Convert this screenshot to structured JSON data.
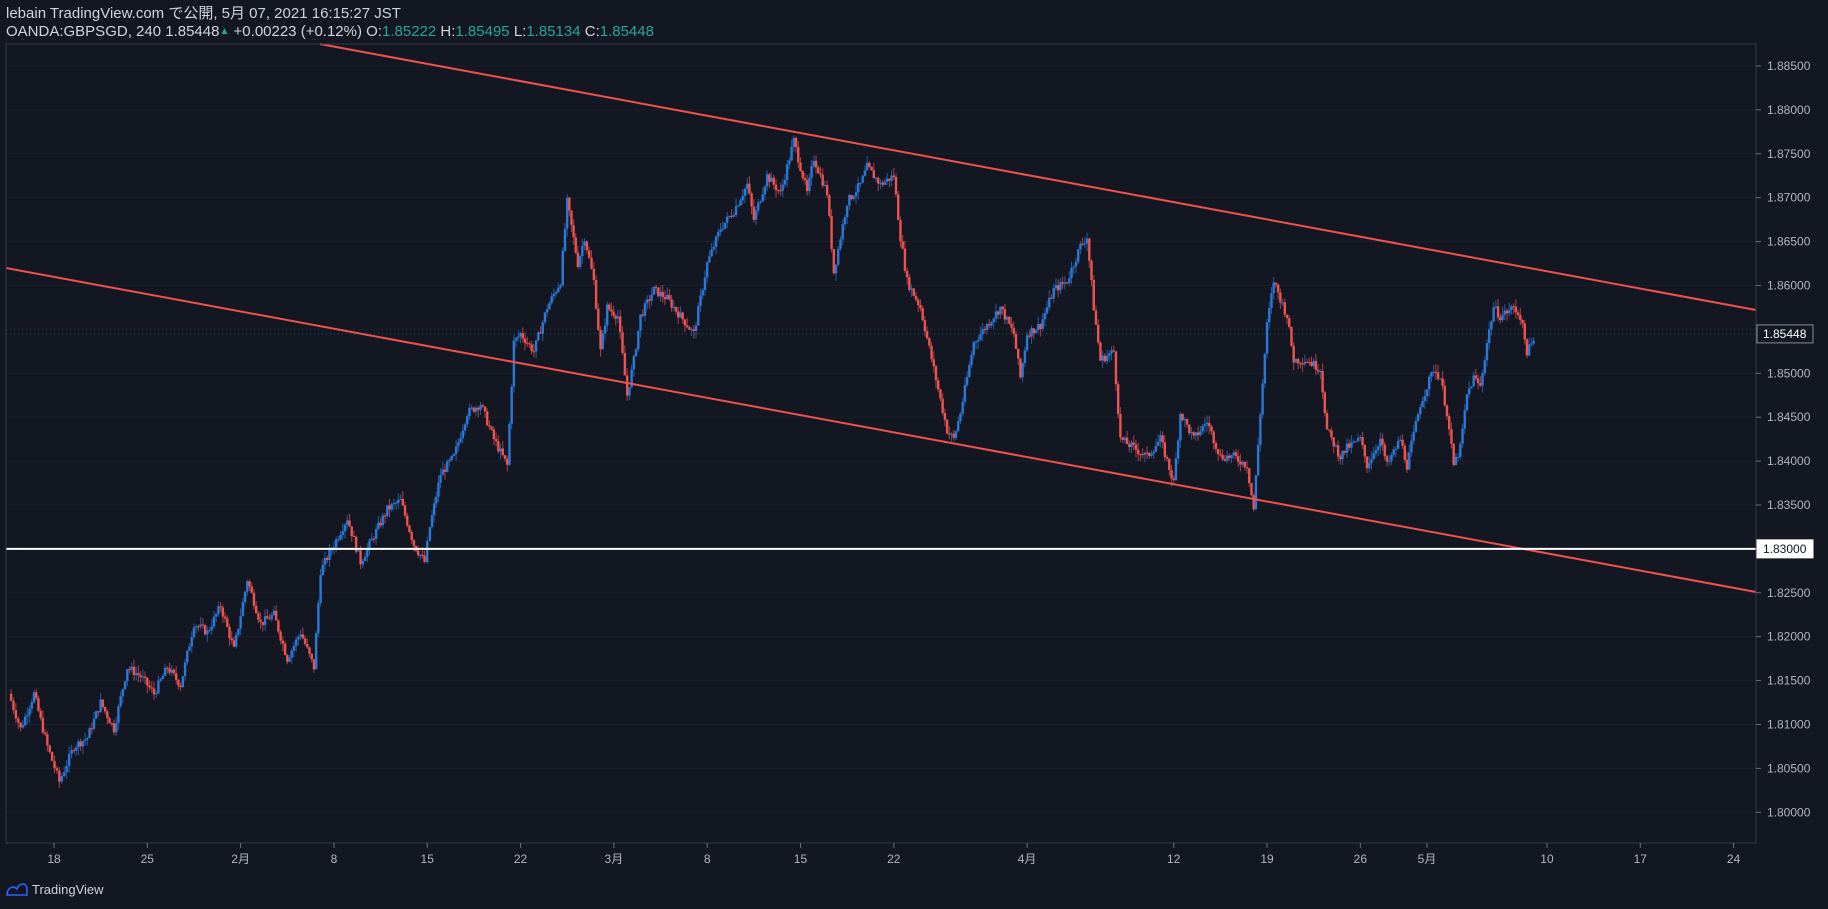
{
  "header": {
    "line1": "lebain TradingView.com で公開, 5月 07, 2021 16:15:27 JST",
    "symbol": "OANDA:GBPSGD, 240",
    "last": "1.85448",
    "arrow": "▲",
    "change": "+0.00223 (+0.12%)",
    "o_label": "O:",
    "o_value": "1.85222",
    "h_label": "H:",
    "h_value": "1.85495",
    "l_label": "L:",
    "l_value": "1.85134",
    "c_label": "C:",
    "c_value": "1.85448"
  },
  "brand": {
    "name": "TradingView"
  },
  "colors": {
    "background": "#131722",
    "up_candle": "#2979d9",
    "down_candle": "#ef5350",
    "trendline": "#f0524d",
    "level": "#ffffff",
    "axis_text": "#b2b5be",
    "grid": "#2a2e39"
  },
  "chart_data": {
    "type": "candlestick",
    "symbol": "OANDA:GBPSGD",
    "interval": "240",
    "ylim": [
      1.7965,
      1.8875
    ],
    "y_ticks": [
      "1.80000",
      "1.80500",
      "1.81000",
      "1.81500",
      "1.82000",
      "1.82500",
      "1.83000",
      "1.83500",
      "1.84000",
      "1.84500",
      "1.85000",
      "1.85500",
      "1.86000",
      "1.86500",
      "1.87000",
      "1.87500",
      "1.88000",
      "1.88500"
    ],
    "x_ticks": [
      {
        "label": "18",
        "day": 0
      },
      {
        "label": "25",
        "day": 7
      },
      {
        "label": "2月",
        "day": 14
      },
      {
        "label": "8",
        "day": 21
      },
      {
        "label": "15",
        "day": 28
      },
      {
        "label": "22",
        "day": 35
      },
      {
        "label": "3月",
        "day": 42
      },
      {
        "label": "8",
        "day": 49
      },
      {
        "label": "15",
        "day": 56
      },
      {
        "label": "22",
        "day": 63
      },
      {
        "label": "4月",
        "day": 73
      },
      {
        "label": "12",
        "day": 84
      },
      {
        "label": "19",
        "day": 91
      },
      {
        "label": "26",
        "day": 98
      },
      {
        "label": "5月",
        "day": 103
      },
      {
        "label": "10",
        "day": 112
      },
      {
        "label": "17",
        "day": 119
      },
      {
        "label": "24",
        "day": 126
      }
    ],
    "last_price": {
      "label": "1.85448",
      "value": 1.85448
    },
    "horizontal_level": {
      "label": "1.83000",
      "value": 1.83
    },
    "price_path": [
      [
        -3.4,
        1.8135
      ],
      [
        -2.5,
        1.8095
      ],
      [
        -1.5,
        1.8135
      ],
      [
        -0.5,
        1.8075
      ],
      [
        0.4,
        1.8035
      ],
      [
        1.5,
        1.8075
      ],
      [
        2.5,
        1.8085
      ],
      [
        3.5,
        1.8125
      ],
      [
        4.5,
        1.8095
      ],
      [
        5.5,
        1.8165
      ],
      [
        6.5,
        1.8155
      ],
      [
        7.5,
        1.8135
      ],
      [
        8.5,
        1.8165
      ],
      [
        9.5,
        1.8145
      ],
      [
        10.5,
        1.8215
      ],
      [
        11.5,
        1.8205
      ],
      [
        12.5,
        1.8235
      ],
      [
        13.5,
        1.8185
      ],
      [
        14.5,
        1.8265
      ],
      [
        15.5,
        1.8215
      ],
      [
        16.5,
        1.8225
      ],
      [
        17.5,
        1.8175
      ],
      [
        18.5,
        1.8205
      ],
      [
        19.5,
        1.8165
      ],
      [
        20.0,
        1.8275
      ],
      [
        21.0,
        1.8305
      ],
      [
        22.0,
        1.8335
      ],
      [
        23.0,
        1.8285
      ],
      [
        24.0,
        1.8315
      ],
      [
        25.0,
        1.8345
      ],
      [
        26.0,
        1.8355
      ],
      [
        27.0,
        1.8305
      ],
      [
        27.8,
        1.8285
      ],
      [
        28.2,
        1.8325
      ],
      [
        29.0,
        1.8385
      ],
      [
        30.0,
        1.8405
      ],
      [
        31.0,
        1.8455
      ],
      [
        32.0,
        1.8465
      ],
      [
        33.0,
        1.8425
      ],
      [
        34.0,
        1.8395
      ],
      [
        34.5,
        1.8535
      ],
      [
        35.0,
        1.8545
      ],
      [
        36.0,
        1.8525
      ],
      [
        37.0,
        1.8575
      ],
      [
        38.0,
        1.8605
      ],
      [
        38.5,
        1.8695
      ],
      [
        39.3,
        1.8625
      ],
      [
        39.8,
        1.8655
      ],
      [
        40.5,
        1.8605
      ],
      [
        41.0,
        1.8525
      ],
      [
        41.5,
        1.8575
      ],
      [
        42.3,
        1.8565
      ],
      [
        43.0,
        1.8475
      ],
      [
        43.5,
        1.8515
      ],
      [
        44.0,
        1.8565
      ],
      [
        45.0,
        1.8595
      ],
      [
        46.0,
        1.8585
      ],
      [
        47.0,
        1.8565
      ],
      [
        48.0,
        1.8545
      ],
      [
        49.0,
        1.8625
      ],
      [
        50.0,
        1.8665
      ],
      [
        51.0,
        1.8685
      ],
      [
        52.0,
        1.8715
      ],
      [
        52.5,
        1.8675
      ],
      [
        53.5,
        1.8725
      ],
      [
        54.5,
        1.8705
      ],
      [
        55.5,
        1.8765
      ],
      [
        56.5,
        1.8705
      ],
      [
        57.0,
        1.8745
      ],
      [
        58.0,
        1.8705
      ],
      [
        58.5,
        1.8615
      ],
      [
        59.5,
        1.8695
      ],
      [
        60.5,
        1.8715
      ],
      [
        61.0,
        1.8735
      ],
      [
        62.0,
        1.8715
      ],
      [
        63.0,
        1.8725
      ],
      [
        63.5,
        1.8655
      ],
      [
        64.0,
        1.8605
      ],
      [
        65.0,
        1.8575
      ],
      [
        66.0,
        1.8505
      ],
      [
        67.0,
        1.8435
      ],
      [
        67.5,
        1.8425
      ],
      [
        68.0,
        1.8455
      ],
      [
        69.0,
        1.8535
      ],
      [
        70.0,
        1.8555
      ],
      [
        71.0,
        1.8575
      ],
      [
        72.0,
        1.8545
      ],
      [
        72.5,
        1.8495
      ],
      [
        73.0,
        1.8545
      ],
      [
        74.0,
        1.8555
      ],
      [
        75.0,
        1.8595
      ],
      [
        76.0,
        1.8605
      ],
      [
        77.0,
        1.8645
      ],
      [
        77.5,
        1.8655
      ],
      [
        78.0,
        1.8575
      ],
      [
        78.5,
        1.8515
      ],
      [
        79.5,
        1.8525
      ],
      [
        80.0,
        1.8425
      ],
      [
        81.0,
        1.8415
      ],
      [
        82.0,
        1.8405
      ],
      [
        83.0,
        1.8425
      ],
      [
        84.0,
        1.8375
      ],
      [
        84.5,
        1.8455
      ],
      [
        85.5,
        1.8425
      ],
      [
        86.5,
        1.8445
      ],
      [
        87.5,
        1.8405
      ],
      [
        88.5,
        1.8405
      ],
      [
        89.5,
        1.8395
      ],
      [
        90.0,
        1.8345
      ],
      [
        90.5,
        1.8455
      ],
      [
        91.0,
        1.8555
      ],
      [
        91.5,
        1.8605
      ],
      [
        92.5,
        1.8565
      ],
      [
        93.0,
        1.8515
      ],
      [
        94.0,
        1.8515
      ],
      [
        95.0,
        1.8505
      ],
      [
        95.5,
        1.8435
      ],
      [
        96.5,
        1.8405
      ],
      [
        97.0,
        1.8415
      ],
      [
        98.0,
        1.8425
      ],
      [
        98.5,
        1.8395
      ],
      [
        99.5,
        1.8425
      ],
      [
        100.0,
        1.8395
      ],
      [
        101.0,
        1.8425
      ],
      [
        101.5,
        1.8395
      ],
      [
        102.5,
        1.8465
      ],
      [
        103.5,
        1.8505
      ],
      [
        104.0,
        1.8495
      ],
      [
        104.5,
        1.8455
      ],
      [
        105.0,
        1.8395
      ],
      [
        105.5,
        1.8415
      ],
      [
        106.0,
        1.8475
      ],
      [
        106.5,
        1.8495
      ],
      [
        107.0,
        1.8485
      ],
      [
        107.5,
        1.8535
      ],
      [
        108.0,
        1.8575
      ],
      [
        108.5,
        1.8565
      ],
      [
        109.5,
        1.8575
      ],
      [
        110.0,
        1.8565
      ],
      [
        110.5,
        1.8525
      ],
      [
        111.0,
        1.8535
      ]
    ]
  }
}
